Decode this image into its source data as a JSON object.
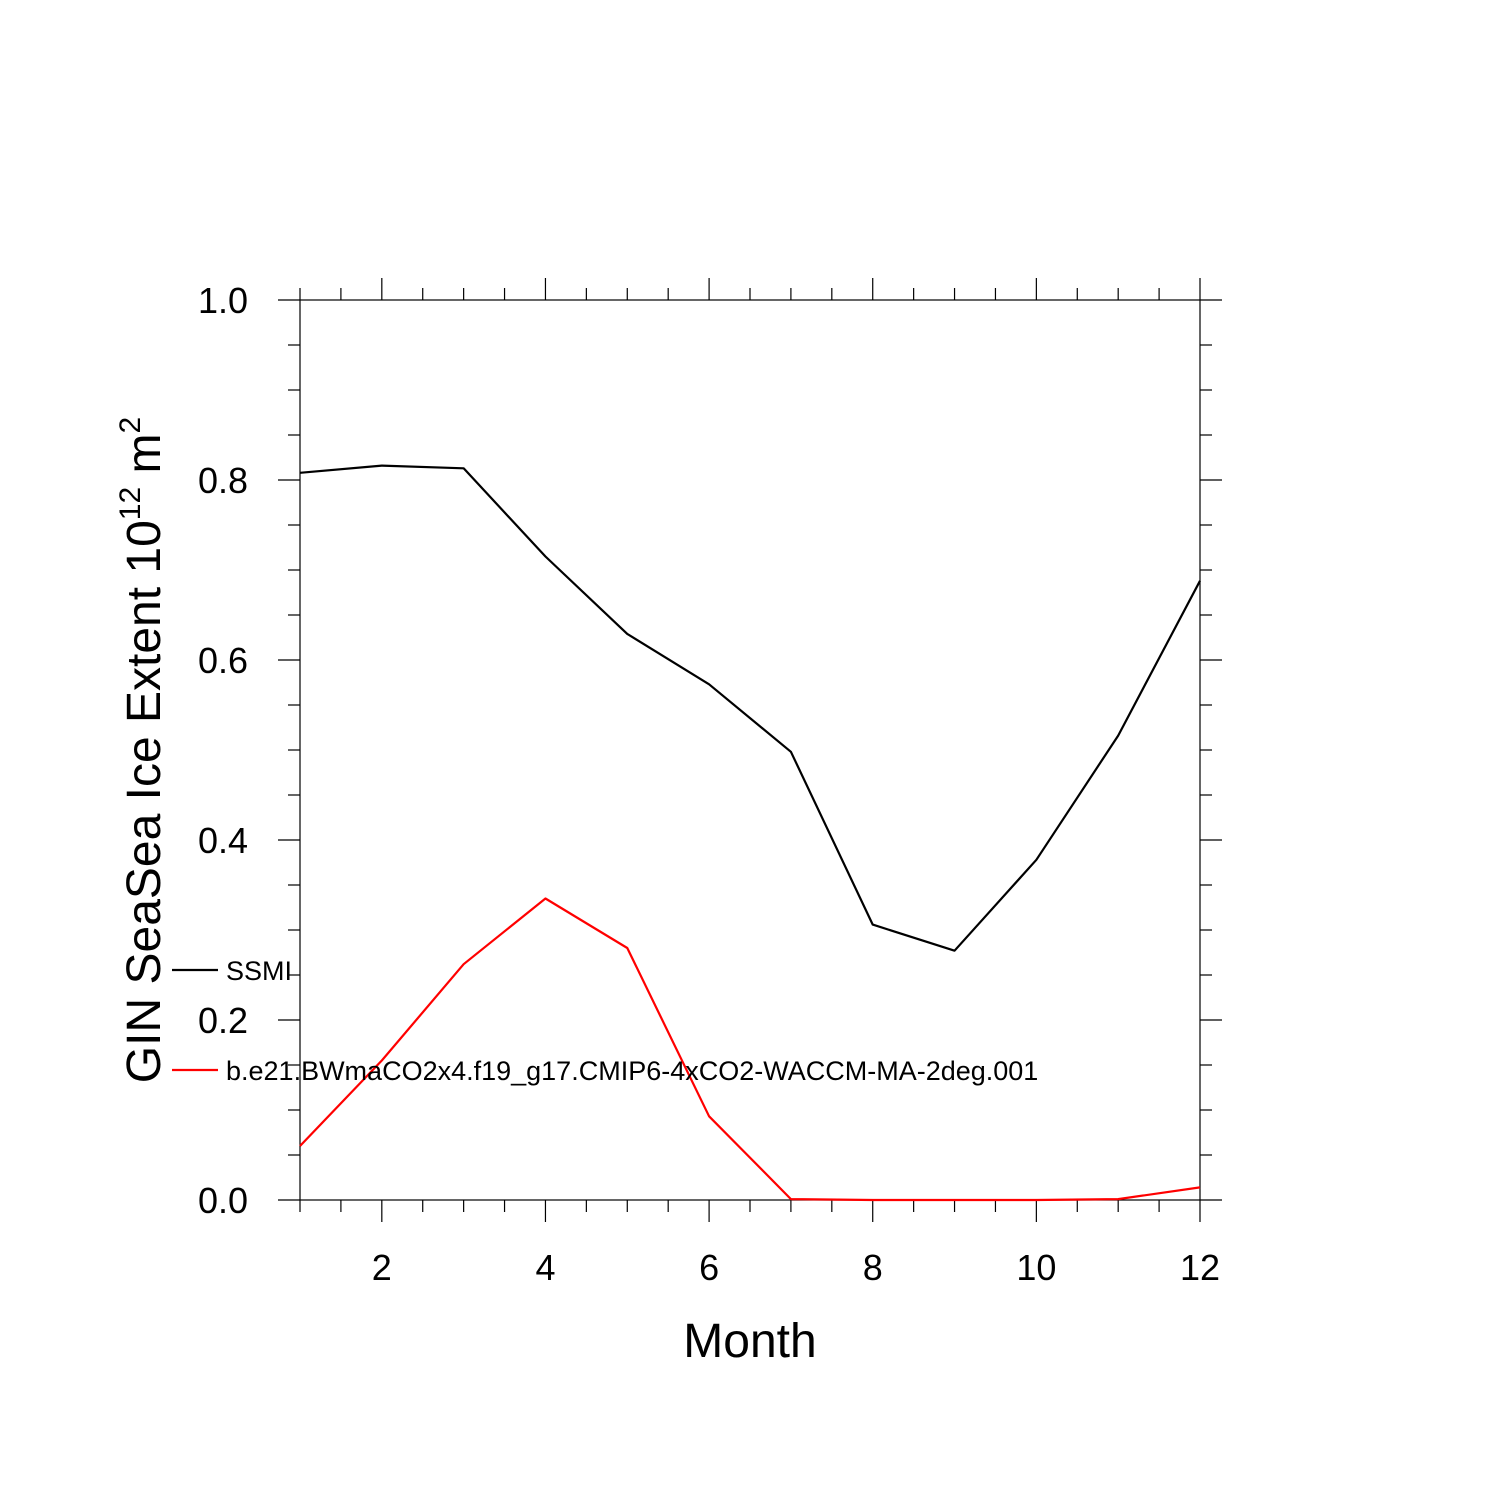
{
  "chart_data": {
    "type": "line",
    "x": [
      1,
      2,
      3,
      4,
      5,
      6,
      7,
      8,
      9,
      10,
      11,
      12
    ],
    "series": [
      {
        "name": "SSMI",
        "color": "#000000",
        "values": [
          0.808,
          0.816,
          0.813,
          0.715,
          0.629,
          0.573,
          0.498,
          0.306,
          0.277,
          0.378,
          0.516,
          0.688
        ]
      },
      {
        "name": "b.e21.BWmaCO2x4.f19_g17.CMIP6-4xCO2-WACCM-MA-2deg.001",
        "color": "#ff0000",
        "values": [
          0.06,
          0.155,
          0.262,
          0.335,
          0.28,
          0.093,
          0.001,
          0.0,
          0.0,
          0.0,
          0.001,
          0.014
        ]
      }
    ],
    "xlabel": "Month",
    "ylabel": "GIN SeaSea Ice Extent 10",
    "ylabel_exp": "12",
    "ylabel_unit": "m",
    "ylabel_unit_exp": "2",
    "xlim": [
      1,
      12
    ],
    "ylim": [
      0,
      1
    ],
    "x_ticks": [
      2,
      4,
      6,
      8,
      10,
      12
    ],
    "x_tick_labels": [
      "2",
      "4",
      "6",
      "8",
      "10",
      "12"
    ],
    "y_ticks": [
      0,
      0.2,
      0.4,
      0.6,
      0.8,
      1.0
    ],
    "y_tick_labels": [
      "0.0",
      "0.2",
      "0.4",
      "0.6",
      "0.8",
      "1.0"
    ],
    "grid": false,
    "legend_placement": "left"
  }
}
